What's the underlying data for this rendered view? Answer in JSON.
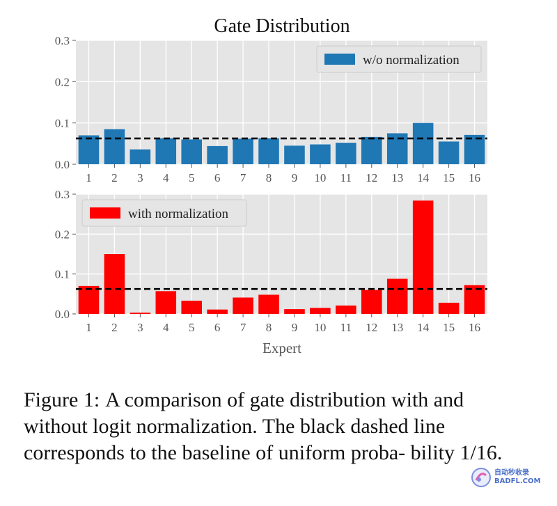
{
  "title": "Gate Distribution",
  "xlabel": "Expert",
  "baseline": 0.0625,
  "chart_data": [
    {
      "type": "bar",
      "title": "Gate Distribution",
      "legend": "w/o normalization",
      "legend_position": "top-right",
      "color": "#1f77b4",
      "categories": [
        "1",
        "2",
        "3",
        "4",
        "5",
        "6",
        "7",
        "8",
        "9",
        "10",
        "11",
        "12",
        "13",
        "14",
        "15",
        "16"
      ],
      "values": [
        0.07,
        0.085,
        0.036,
        0.063,
        0.06,
        0.044,
        0.062,
        0.063,
        0.045,
        0.048,
        0.052,
        0.066,
        0.075,
        0.1,
        0.055,
        0.071
      ],
      "yticks": [
        "0.0",
        "0.1",
        "0.2",
        "0.3"
      ],
      "ylim": [
        0,
        0.3
      ],
      "grid": true,
      "baseline": 0.0625
    },
    {
      "type": "bar",
      "legend": "with normalization",
      "legend_position": "top-left",
      "color": "#ff0000",
      "xlabel": "Expert",
      "categories": [
        "1",
        "2",
        "3",
        "4",
        "5",
        "6",
        "7",
        "8",
        "9",
        "10",
        "11",
        "12",
        "13",
        "14",
        "15",
        "16"
      ],
      "values": [
        0.07,
        0.15,
        0.003,
        0.057,
        0.033,
        0.011,
        0.041,
        0.048,
        0.012,
        0.015,
        0.021,
        0.06,
        0.088,
        0.284,
        0.028,
        0.072
      ],
      "yticks": [
        "0.0",
        "0.1",
        "0.2",
        "0.3"
      ],
      "ylim": [
        0,
        0.3
      ],
      "grid": true,
      "baseline": 0.0625
    }
  ],
  "caption": {
    "label": "Figure 1:",
    "text": "A comparison of gate distribution with and without logit normalization. The black dashed line corresponds to the baseline of uniform proba- bility 1/16."
  },
  "watermark": {
    "line1": "自动秒收录",
    "line2": "BADFL.COM"
  }
}
